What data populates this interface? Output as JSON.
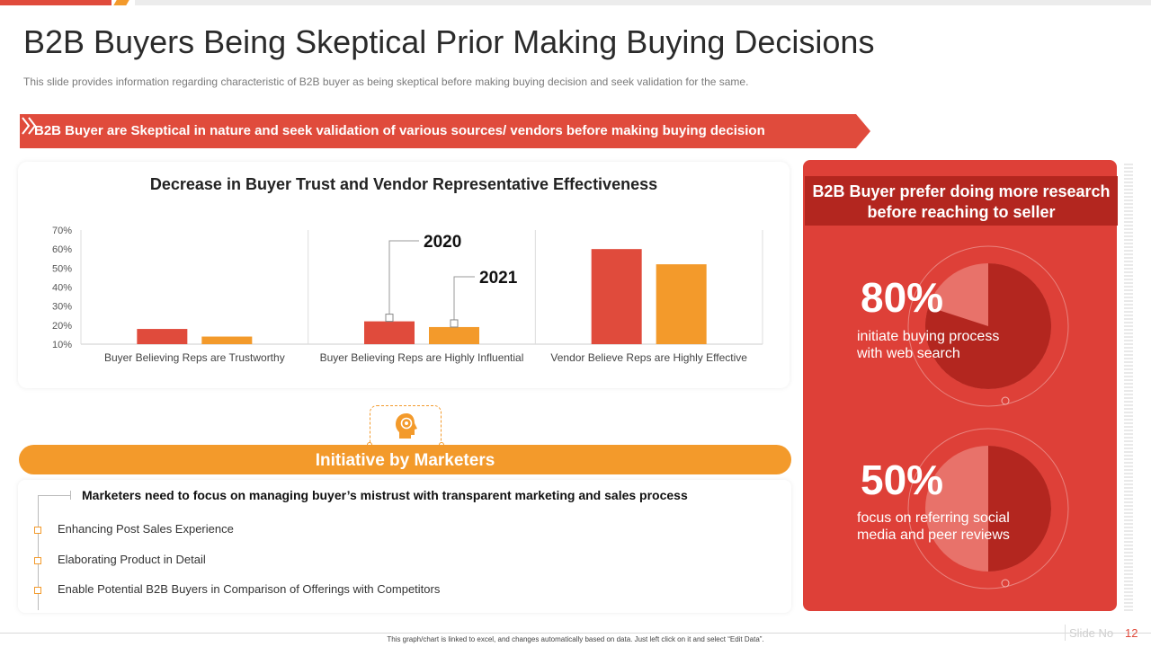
{
  "slide": {
    "title": "B2B Buyers Being Skeptical Prior Making Buying Decisions",
    "subtitle": "This slide provides  information  regarding  characteristic of B2B buyer as being skeptical before  making buying decision and seek validation  for the same.",
    "banner": "B2B Buyer are Skeptical in nature and seek validation of various sources/ vendors before making buying decision",
    "footer_note": "This graph/chart is linked to excel, and changes automatically based on data. Just left click on it and select “Edit Data”.",
    "slide_no_label": "Slide No",
    "slide_no": "12"
  },
  "colors": {
    "red": "#e04b3c",
    "orange": "#f39a2b",
    "dark_red": "#b3261f",
    "panel_red": "#de4038"
  },
  "chart_data": {
    "type": "bar",
    "title": "Decrease in Buyer Trust and Vendor Representative Effectiveness",
    "categories": [
      "Buyer Believing Reps are Trustworthy",
      "Buyer Believing Reps are Highly Influential",
      "Vendor Believe Reps are Highly Effective"
    ],
    "series": [
      {
        "name": "2020",
        "values": [
          18,
          22,
          60
        ],
        "color": "#e04b3c"
      },
      {
        "name": "2021",
        "values": [
          14,
          19,
          52
        ],
        "color": "#f39a2b"
      }
    ],
    "ylim": [
      10,
      70
    ],
    "yticks": [
      "10%",
      "20%",
      "30%",
      "40%",
      "50%",
      "60%",
      "70%"
    ],
    "xlabel": "",
    "ylabel": "",
    "legend": "callouts"
  },
  "initiative": {
    "title": "Initiative  by Marketers",
    "icon": "head-gear-icon",
    "heading": "Marketers need to focus on managing buyer’s mistrust with transparent marketing and sales process",
    "items": [
      "Enhancing Post Sales Experience",
      "Elaborating Product in Detail",
      "Enable Potential B2B Buyers in Comparison  of Offerings  with Competitors"
    ]
  },
  "research_panel": {
    "header": "B2B Buyer prefer doing more research before reaching to seller",
    "stats": [
      {
        "value": "80%",
        "fraction": 0.8,
        "label": "initiate buying process with web search"
      },
      {
        "value": "50%",
        "fraction": 0.5,
        "label": "focus  on referring social media and peer reviews"
      }
    ]
  }
}
